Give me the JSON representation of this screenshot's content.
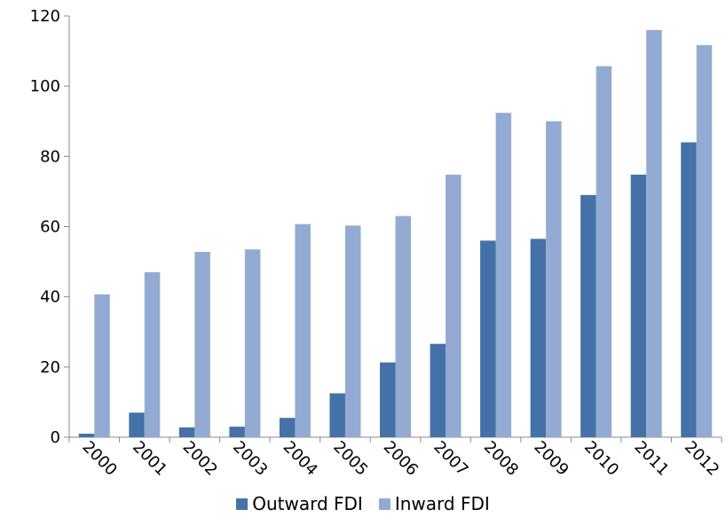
{
  "chart_data": {
    "type": "bar",
    "categories": [
      "2000",
      "2001",
      "2002",
      "2003",
      "2004",
      "2005",
      "2006",
      "2007",
      "2008",
      "2009",
      "2010",
      "2011",
      "2012"
    ],
    "series": [
      {
        "name": "Outward FDI",
        "color": "#4472a8",
        "values": [
          1,
          7,
          2.8,
          3,
          5.5,
          12.5,
          21.3,
          26.6,
          56,
          56.5,
          69,
          74.8,
          84
        ]
      },
      {
        "name": "Inward FDI",
        "color": "#93abd2",
        "values": [
          40.7,
          47,
          52.8,
          53.5,
          60.7,
          60.3,
          63,
          74.8,
          92.4,
          90,
          105.7,
          116,
          111.7
        ]
      }
    ],
    "yticks": [
      "0",
      "20",
      "40",
      "60",
      "80",
      "100",
      "120"
    ],
    "ylim": [
      0,
      120
    ],
    "legend_position": "bottom",
    "grid": false
  }
}
